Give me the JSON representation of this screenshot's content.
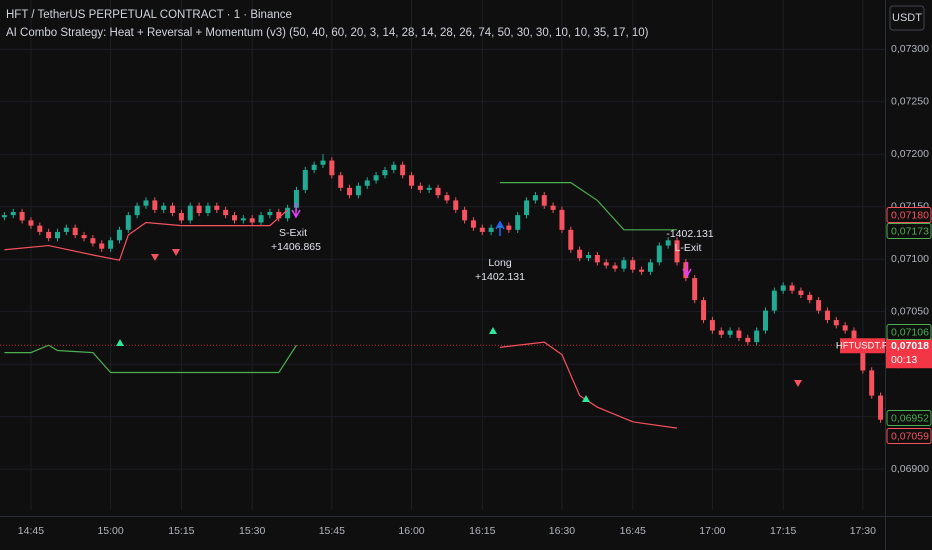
{
  "header": {
    "title": "HFT / TetherUS PERPETUAL CONTRACT · 1 · Binance",
    "indicator": "AI Combo Strategy: Heat + Reversal + Momentum (v3) (50, 40, 60, 20, 3, 14, 28, 14, 28, 26, 74, 50, 30, 30, 10, 10, 35, 17, 10)",
    "currency_button": "USDT"
  },
  "chart_data": {
    "type": "candlestick",
    "categories": [
      null,
      null,
      null,
      "14:45",
      null,
      null,
      null,
      null,
      null,
      null,
      null,
      null,
      "15:00",
      null,
      null,
      null,
      null,
      null,
      null,
      null,
      "15:15",
      null,
      null,
      null,
      null,
      null,
      null,
      null,
      "15:30",
      null,
      null,
      null,
      null,
      null,
      null,
      null,
      null,
      "15:45",
      null,
      null,
      null,
      null,
      null,
      null,
      null,
      null,
      "16:00",
      null,
      null,
      null,
      null,
      null,
      null,
      null,
      "16:15",
      null,
      null,
      null,
      null,
      null,
      null,
      null,
      null,
      "16:30",
      null,
      null,
      null,
      null,
      null,
      null,
      null,
      "16:45",
      null,
      null,
      null,
      null,
      null,
      null,
      null,
      null,
      "17:00",
      null,
      null,
      null,
      null,
      null,
      null,
      null,
      "17:15",
      null,
      null,
      null,
      null,
      null,
      null,
      null,
      null,
      "17:30",
      null,
      null
    ],
    "open": [
      0.0714,
      0.07142,
      0.07145,
      0.07137,
      0.07132,
      0.07126,
      0.0712,
      0.07126,
      0.0713,
      0.07123,
      0.0712,
      0.07115,
      0.0711,
      0.07118,
      0.07128,
      0.07142,
      0.07151,
      0.07156,
      0.07147,
      0.07151,
      0.07144,
      0.07137,
      0.07151,
      0.07144,
      0.07151,
      0.07147,
      0.07142,
      0.07137,
      0.07139,
      0.07135,
      0.07142,
      0.07145,
      0.07139,
      0.07149,
      0.07166,
      0.07185,
      0.0719,
      0.07194,
      0.0718,
      0.07168,
      0.07161,
      0.0717,
      0.07175,
      0.0718,
      0.07185,
      0.0719,
      0.0718,
      0.0717,
      0.07166,
      0.07168,
      0.07161,
      0.07156,
      0.07147,
      0.07137,
      0.0713,
      0.07126,
      0.0713,
      0.07132,
      0.07128,
      0.07142,
      0.07156,
      0.07161,
      0.07151,
      0.07147,
      0.07128,
      0.07109,
      0.07101,
      0.07104,
      0.07097,
      0.07094,
      0.07091,
      0.07099,
      0.0709,
      0.07088,
      0.07097,
      0.07113,
      0.07118,
      0.07097,
      0.07082,
      0.07061,
      0.07042,
      0.07032,
      0.07028,
      0.07032,
      0.07025,
      0.07021,
      0.07032,
      0.07051,
      0.0707,
      0.07075,
      0.0707,
      0.07066,
      0.07061,
      0.07051,
      0.07042,
      0.07037,
      0.07032,
      0.07018,
      0.06994,
      0.0697
    ],
    "high": [
      0.07145,
      0.07148,
      0.07148,
      0.0714,
      0.07135,
      0.07129,
      0.07129,
      0.07133,
      0.07133,
      0.07126,
      0.07123,
      0.07118,
      0.07121,
      0.07131,
      0.07145,
      0.07154,
      0.07159,
      0.07159,
      0.07154,
      0.07154,
      0.07147,
      0.07154,
      0.07154,
      0.07154,
      0.07154,
      0.0715,
      0.07145,
      0.07142,
      0.07142,
      0.07145,
      0.07148,
      0.07148,
      0.07152,
      0.07169,
      0.07188,
      0.07193,
      0.072,
      0.07197,
      0.07183,
      0.07171,
      0.07173,
      0.07178,
      0.07183,
      0.07188,
      0.07193,
      0.07193,
      0.07183,
      0.07173,
      0.07171,
      0.07171,
      0.07164,
      0.07159,
      0.0715,
      0.0714,
      0.07133,
      0.07133,
      0.07135,
      0.07135,
      0.07145,
      0.07159,
      0.07164,
      0.07164,
      0.07154,
      0.0715,
      0.07131,
      0.07112,
      0.07107,
      0.07107,
      0.071,
      0.07097,
      0.07102,
      0.07102,
      0.07093,
      0.071,
      0.07116,
      0.07121,
      0.07121,
      0.071,
      0.07085,
      0.07064,
      0.07045,
      0.07035,
      0.07035,
      0.07035,
      0.07028,
      0.07035,
      0.07054,
      0.07073,
      0.07078,
      0.07078,
      0.07073,
      0.07069,
      0.07064,
      0.07054,
      0.07045,
      0.0704,
      0.07035,
      0.07021,
      0.06997,
      0.06973
    ],
    "low": [
      0.07137,
      0.07139,
      0.07134,
      0.07129,
      0.07123,
      0.07117,
      0.07117,
      0.07123,
      0.0712,
      0.07117,
      0.07112,
      0.07107,
      0.07107,
      0.07115,
      0.07125,
      0.07139,
      0.07148,
      0.07144,
      0.07144,
      0.07141,
      0.07134,
      0.07134,
      0.07141,
      0.07141,
      0.07144,
      0.07139,
      0.07134,
      0.07134,
      0.07132,
      0.07132,
      0.07139,
      0.07136,
      0.07136,
      0.07146,
      0.07163,
      0.07182,
      0.07187,
      0.07177,
      0.07165,
      0.07158,
      0.07158,
      0.07167,
      0.07172,
      0.07177,
      0.07182,
      0.07177,
      0.07167,
      0.07163,
      0.07163,
      0.07158,
      0.07153,
      0.07144,
      0.07134,
      0.07127,
      0.07123,
      0.07123,
      0.07127,
      0.07125,
      0.07125,
      0.07139,
      0.07153,
      0.07148,
      0.07144,
      0.07125,
      0.07106,
      0.07098,
      0.07098,
      0.07094,
      0.07091,
      0.07088,
      0.07088,
      0.07087,
      0.07085,
      0.07085,
      0.07094,
      0.0711,
      0.07094,
      0.07079,
      0.07058,
      0.07039,
      0.07029,
      0.07025,
      0.07025,
      0.07022,
      0.07018,
      0.07018,
      0.07029,
      0.07048,
      0.07067,
      0.07067,
      0.07063,
      0.07058,
      0.07048,
      0.07039,
      0.07034,
      0.07029,
      0.07015,
      0.06991,
      0.06967,
      0.06944
    ],
    "close": [
      0.07142,
      0.07145,
      0.07137,
      0.07132,
      0.07126,
      0.0712,
      0.07126,
      0.0713,
      0.07123,
      0.0712,
      0.07115,
      0.0711,
      0.07118,
      0.07128,
      0.07142,
      0.07151,
      0.07156,
      0.07147,
      0.07151,
      0.07144,
      0.07137,
      0.07151,
      0.07144,
      0.07151,
      0.07147,
      0.07142,
      0.07137,
      0.07139,
      0.07135,
      0.07142,
      0.07145,
      0.07139,
      0.07149,
      0.07166,
      0.07185,
      0.0719,
      0.07194,
      0.0718,
      0.07168,
      0.07161,
      0.0717,
      0.07175,
      0.0718,
      0.07185,
      0.0719,
      0.0718,
      0.0717,
      0.07166,
      0.07168,
      0.07161,
      0.07156,
      0.07147,
      0.07137,
      0.0713,
      0.07126,
      0.0713,
      0.07132,
      0.07128,
      0.07142,
      0.07156,
      0.07161,
      0.07151,
      0.07147,
      0.07128,
      0.07109,
      0.07101,
      0.07104,
      0.07097,
      0.07094,
      0.07091,
      0.07099,
      0.0709,
      0.07088,
      0.07097,
      0.07113,
      0.07118,
      0.07097,
      0.07082,
      0.07061,
      0.07042,
      0.07032,
      0.07028,
      0.07032,
      0.07025,
      0.07021,
      0.07032,
      0.07051,
      0.0707,
      0.07075,
      0.0707,
      0.07066,
      0.07061,
      0.07051,
      0.07042,
      0.07037,
      0.07032,
      0.07018,
      0.06994,
      0.0697,
      0.06947
    ],
    "up_color": "#22ab94",
    "down_color": "#f7525f",
    "ylim": [
      0.06861,
      0.07347
    ],
    "yticks": [
      {
        "value": 0.069,
        "label": "0,06900"
      },
      {
        "value": 0.0695,
        "label": "0,06950"
      },
      {
        "value": 0.07,
        "label": "0,07000"
      },
      {
        "value": 0.0705,
        "label": "0,07050"
      },
      {
        "value": 0.071,
        "label": "0,07100"
      },
      {
        "value": 0.0715,
        "label": "0,07150"
      },
      {
        "value": 0.072,
        "label": "0,07200"
      },
      {
        "value": 0.0725,
        "label": "0,07250"
      },
      {
        "value": 0.073,
        "label": "0,07300"
      }
    ],
    "grid": true,
    "lines": [
      {
        "color": "#f7525f",
        "x": [
          0,
          5,
          10,
          13,
          14,
          16,
          20,
          30,
          32
        ],
        "values": [
          0.07109,
          0.07113,
          0.07104,
          0.07099,
          0.07123,
          0.07135,
          0.07132,
          0.07132,
          0.07147
        ]
      },
      {
        "color": "#4caf50",
        "x": [
          0,
          3,
          5,
          6,
          10,
          12,
          31,
          33
        ],
        "values": [
          0.07011,
          0.07011,
          0.07018,
          0.07013,
          0.07011,
          0.06992,
          0.06992,
          0.07018
        ]
      },
      {
        "color": "#4caf50",
        "x": [
          56,
          64,
          67,
          70,
          76
        ],
        "values": [
          0.07173,
          0.07173,
          0.07156,
          0.07128,
          0.07128
        ]
      },
      {
        "color": "#f7525f",
        "x": [
          56,
          61,
          63,
          65,
          67,
          71,
          76
        ],
        "values": [
          0.07016,
          0.07021,
          0.07009,
          0.0697,
          0.06959,
          0.06945,
          0.06939
        ]
      }
    ],
    "annotations": [
      "S-Exit",
      "+1406.865",
      "Long",
      "+1402.131",
      "-1402.131",
      "L-Exit"
    ],
    "price_tags": [
      {
        "value": 0.0718,
        "label": "0,07180",
        "color": "#f7525f"
      },
      {
        "value": 0.07173,
        "label": "0,07173",
        "color": "#4caf50"
      },
      {
        "value": 0.07106,
        "label": "0,07106",
        "color": "#4caf50"
      },
      {
        "value": 0.06952,
        "label": "0,06952",
        "color": "#4caf50"
      },
      {
        "value": 0.07059,
        "label": "0,07059",
        "color": "#f7525f"
      }
    ],
    "current_price": {
      "symbol": "HFTUSDT.P",
      "value": 0.07018,
      "label": "0,07018",
      "countdown": "00:13",
      "color": "#f23645"
    }
  }
}
